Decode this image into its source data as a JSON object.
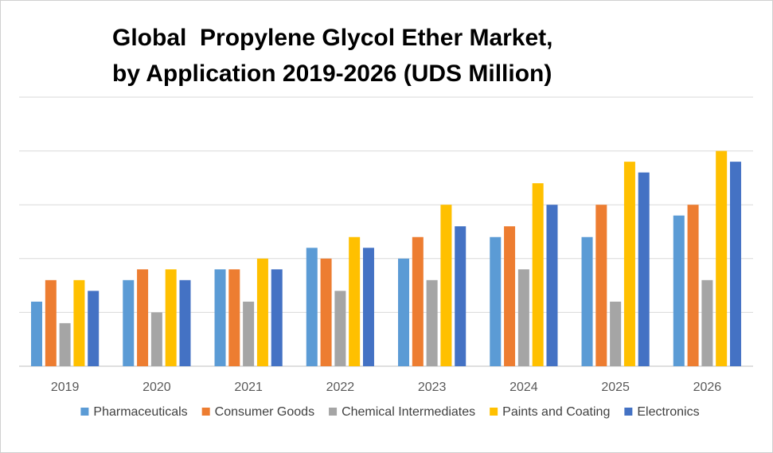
{
  "chart_data": {
    "type": "bar",
    "title_line1": "Global  Propylene Glycol Ether Market,",
    "title_line2": "by Application 2019-2026 (UDS Million)",
    "xlabel": "",
    "ylabel": "",
    "ylim": [
      0,
      25
    ],
    "grid": true,
    "legend_position": "bottom",
    "categories": [
      "2019",
      "2020",
      "2021",
      "2022",
      "2023",
      "2024",
      "2025",
      "2026"
    ],
    "series": [
      {
        "name": "Pharmaceuticals",
        "color": "#5B9BD5",
        "values": [
          6,
          8,
          9,
          11,
          10,
          12,
          12,
          14
        ]
      },
      {
        "name": "Consumer Goods",
        "color": "#ED7D31",
        "values": [
          8,
          9,
          9,
          10,
          12,
          13,
          15,
          15
        ]
      },
      {
        "name": "Chemical Intermediates",
        "color": "#A5A5A5",
        "values": [
          4,
          5,
          6,
          7,
          8,
          9,
          6,
          8
        ]
      },
      {
        "name": "Paints and Coating",
        "color": "#FFC000",
        "values": [
          8,
          9,
          10,
          12,
          15,
          17,
          19,
          20
        ]
      },
      {
        "name": "Electronics",
        "color": "#4472C4",
        "values": [
          7,
          8,
          9,
          11,
          13,
          15,
          18,
          19
        ]
      }
    ]
  }
}
